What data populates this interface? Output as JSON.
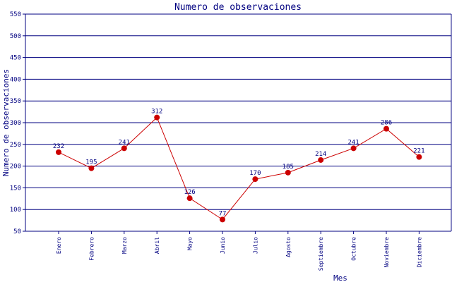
{
  "chart_data": {
    "type": "line",
    "title": "Numero de observaciones",
    "xlabel": "Mes",
    "ylabel": "Numero de observaciones",
    "categories": [
      "Enero",
      "Febrero",
      "Marzo",
      "Abril",
      "Mayo",
      "Junio",
      "Julio",
      "Agosto",
      "Septiembre",
      "Octubre",
      "Noviembre",
      "Diciembre"
    ],
    "values": [
      232,
      195,
      241,
      312,
      126,
      77,
      170,
      185,
      214,
      241,
      286,
      221
    ],
    "ylim": [
      50,
      550
    ],
    "yticks": [
      50,
      100,
      150,
      200,
      250,
      300,
      350,
      400,
      450,
      500,
      550
    ],
    "grid": "horizontal",
    "colors": {
      "line": "#cc0000",
      "marker": "#cc0000",
      "grid": "#000080",
      "text": "#000080"
    }
  }
}
